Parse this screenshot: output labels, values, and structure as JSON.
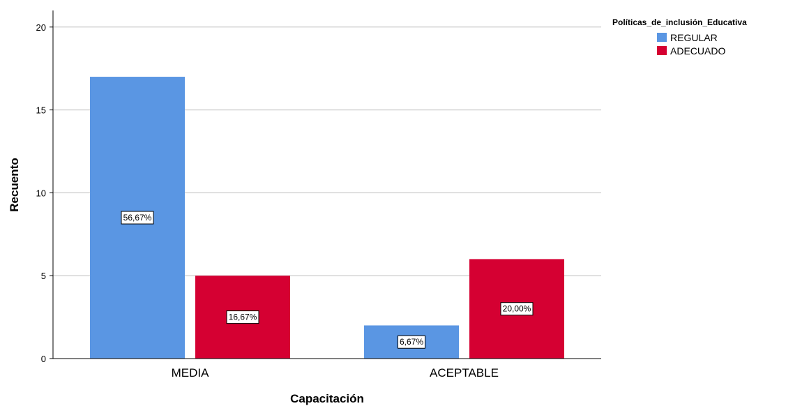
{
  "chart_data": {
    "type": "bar",
    "categories": [
      "MEDIA",
      "ACEPTABLE"
    ],
    "series": [
      {
        "name": "REGULAR",
        "values": [
          17,
          2
        ],
        "labels": [
          "56,67%",
          "6,67%"
        ],
        "color": "#5a96e3"
      },
      {
        "name": "ADECUADO",
        "values": [
          5,
          6
        ],
        "labels": [
          "16,67%",
          "20,00%"
        ],
        "color": "#d50032"
      }
    ],
    "xlabel": "Capacitación",
    "ylabel": "Recuento",
    "ylim": [
      0,
      21
    ],
    "yticks": [
      "0",
      "5",
      "10",
      "15",
      "20"
    ],
    "ytick_values": [
      0,
      5,
      10,
      15,
      20
    ],
    "grid": true,
    "legend_title": "Políticas_de_inclusión_Educativa",
    "legend_position": "top-right"
  }
}
